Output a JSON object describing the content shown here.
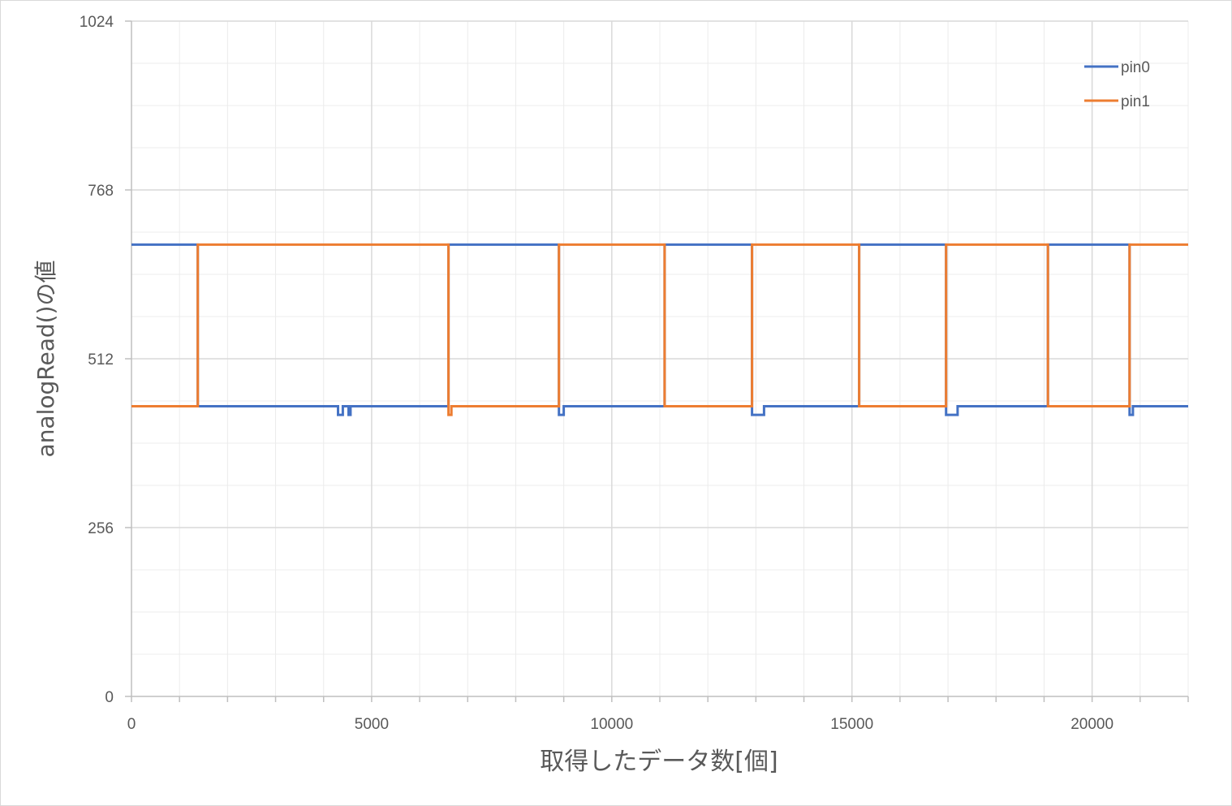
{
  "chart_data": {
    "type": "line",
    "title": "",
    "xlabel": "取得したデータ数[個]",
    "ylabel": "analogRead()の値",
    "xlim": [
      0,
      22000
    ],
    "ylim": [
      0,
      1024
    ],
    "x_ticks": [
      0,
      5000,
      10000,
      15000,
      20000
    ],
    "y_ticks": [
      0,
      256,
      512,
      768,
      1024
    ],
    "grid": "major and minor on both axes",
    "legend_position": "top-right",
    "colors": {
      "pin0": "#4472c4",
      "pin1": "#ed7d31",
      "grid_major": "#d9d9d9",
      "grid_minor": "#ececec"
    },
    "series": [
      {
        "name": "pin0",
        "color": "#4472c4",
        "x": [
          0,
          1380,
          1380,
          4300,
          4300,
          4400,
          4400,
          4520,
          4520,
          4560,
          4560,
          6600,
          6600,
          8900,
          8900,
          9000,
          9000,
          11100,
          11100,
          12920,
          12920,
          13170,
          13170,
          15150,
          15150,
          16960,
          16960,
          17200,
          17200,
          19080,
          19080,
          20780,
          20780,
          20850,
          20850,
          22000
        ],
        "y": [
          685,
          685,
          440,
          440,
          427,
          427,
          440,
          440,
          427,
          427,
          440,
          440,
          685,
          685,
          427,
          427,
          440,
          440,
          685,
          685,
          427,
          427,
          440,
          440,
          685,
          685,
          427,
          427,
          440,
          440,
          685,
          685,
          427,
          427,
          440,
          440
        ]
      },
      {
        "name": "pin1",
        "color": "#ed7d31",
        "x": [
          0,
          1380,
          1380,
          6600,
          6600,
          6660,
          6660,
          6700,
          6700,
          8900,
          8900,
          11100,
          11100,
          12920,
          12920,
          15150,
          15150,
          16960,
          16960,
          19080,
          19080,
          20780,
          20780,
          22000
        ],
        "y": [
          440,
          440,
          685,
          685,
          427,
          427,
          440,
          440,
          440,
          440,
          685,
          685,
          440,
          440,
          685,
          685,
          440,
          440,
          685,
          685,
          440,
          440,
          685,
          685
        ]
      }
    ]
  }
}
